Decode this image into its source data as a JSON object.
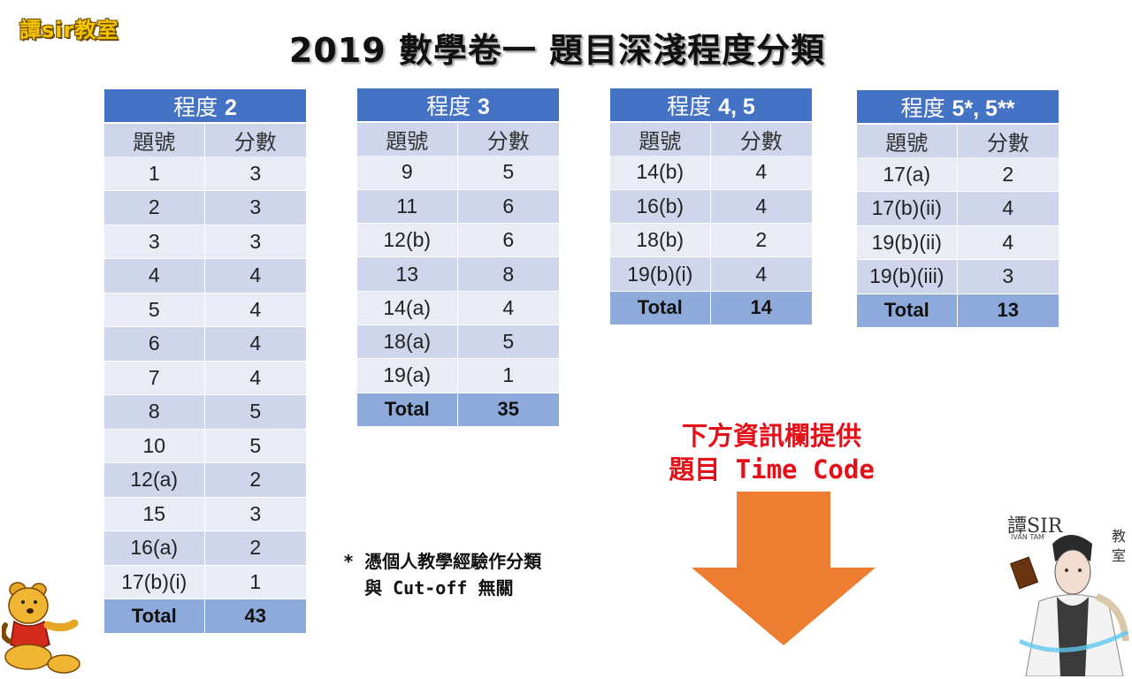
{
  "logo_text": "譚sir教室",
  "title": "2019  數學卷一  題目深淺程度分類",
  "col_headers": {
    "q": "題號",
    "score": "分數"
  },
  "total_label": "Total",
  "tables": [
    {
      "level_prefix": "程度",
      "level": "2",
      "rows": [
        [
          "1",
          "3"
        ],
        [
          "2",
          "3"
        ],
        [
          "3",
          "3"
        ],
        [
          "4",
          "4"
        ],
        [
          "5",
          "4"
        ],
        [
          "6",
          "4"
        ],
        [
          "7",
          "4"
        ],
        [
          "8",
          "5"
        ],
        [
          "10",
          "5"
        ],
        [
          "12(a)",
          "2"
        ],
        [
          "15",
          "3"
        ],
        [
          "16(a)",
          "2"
        ],
        [
          "17(b)(i)",
          "1"
        ]
      ],
      "total": "43"
    },
    {
      "level_prefix": "程度",
      "level": "3",
      "rows": [
        [
          "9",
          "5"
        ],
        [
          "11",
          "6"
        ],
        [
          "12(b)",
          "6"
        ],
        [
          "13",
          "8"
        ],
        [
          "14(a)",
          "4"
        ],
        [
          "18(a)",
          "5"
        ],
        [
          "19(a)",
          "1"
        ]
      ],
      "total": "35"
    },
    {
      "level_prefix": "程度",
      "level": "4, 5",
      "rows": [
        [
          "14(b)",
          "4"
        ],
        [
          "16(b)",
          "4"
        ],
        [
          "18(b)",
          "2"
        ],
        [
          "19(b)(i)",
          "4"
        ]
      ],
      "total": "14"
    },
    {
      "level_prefix": "程度",
      "level": "5*, 5**",
      "rows": [
        [
          "17(a)",
          "2"
        ],
        [
          "17(b)(ii)",
          "4"
        ],
        [
          "19(b)(ii)",
          "4"
        ],
        [
          "19(b)(iii)",
          "3"
        ]
      ],
      "total": "13"
    }
  ],
  "note_line1": "* 憑個人教學經驗作分類",
  "note_line2": "  與 Cut-off 無關",
  "callout_line1": "下方資訊欄提供",
  "callout_line2": "題目 Time Code",
  "teacher_sign": "譚SIR",
  "teacher_name": "IVAN TAM",
  "teacher_side1": "教",
  "teacher_side2": "室",
  "colors": {
    "header": "#4472c4",
    "row_light": "#e9ebf5",
    "row_dark": "#cfd5ea",
    "total": "#8eaadb",
    "arrow": "#ed7d31",
    "callout": "#e3101a"
  }
}
